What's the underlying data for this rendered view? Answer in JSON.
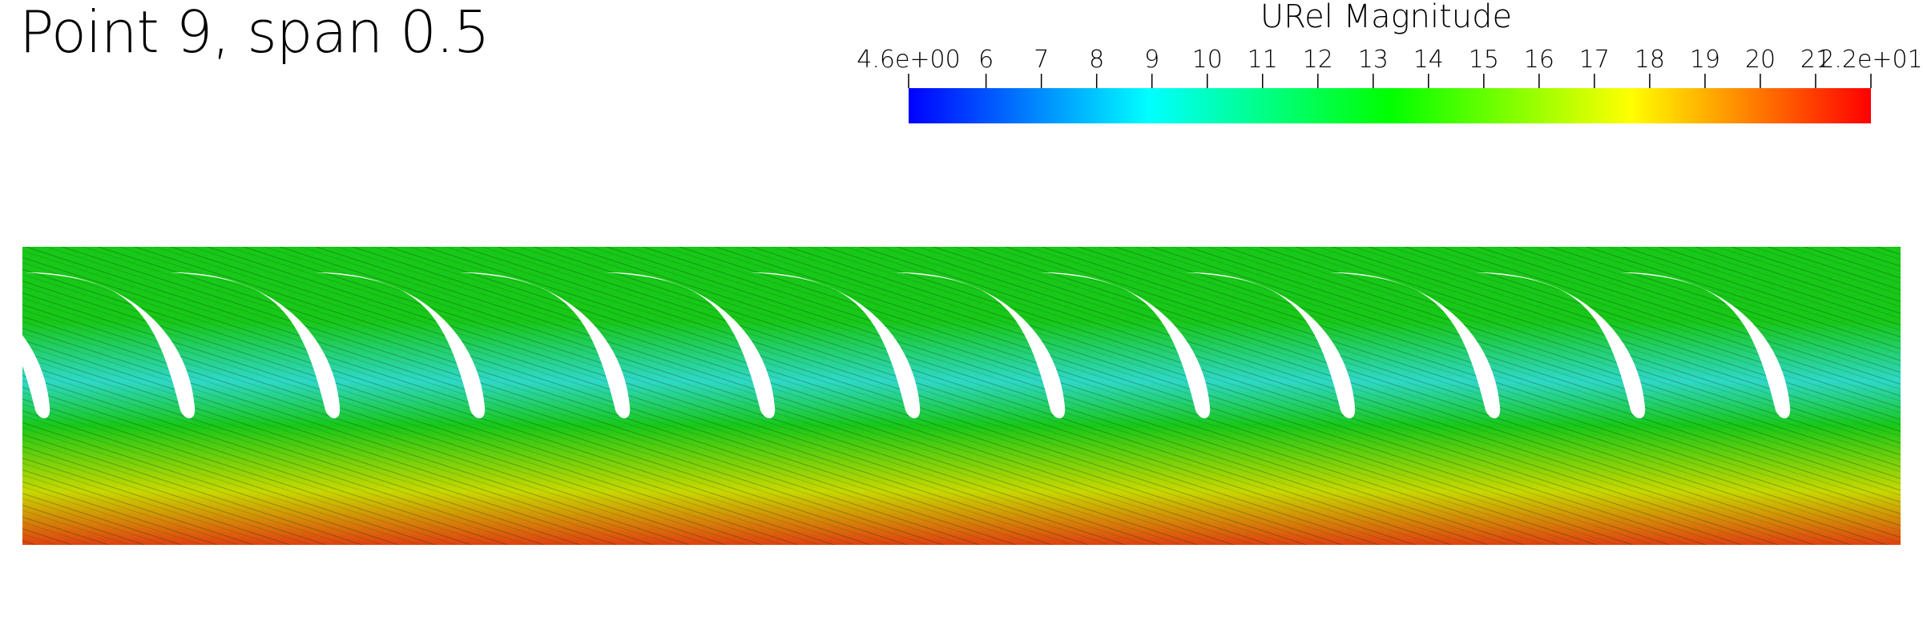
{
  "title": "Point 9, span 0.5",
  "colorbar": {
    "title": "URel Magnitude",
    "tick_labels": [
      "4.6e+00",
      "6",
      "7",
      "8",
      "9",
      "10",
      "11",
      "12",
      "13",
      "14",
      "15",
      "16",
      "17",
      "18",
      "19",
      "20",
      "21",
      "2.2e+01"
    ],
    "tick_values": [
      4.6,
      6,
      7,
      8,
      9,
      10,
      11,
      12,
      13,
      14,
      15,
      16,
      17,
      18,
      19,
      20,
      21,
      22
    ],
    "range": [
      4.6,
      22
    ],
    "colormap": [
      "#0000ff",
      "#00ffff",
      "#00ff00",
      "#ffff00",
      "#ff0000"
    ]
  },
  "field": {
    "blade_count": 13,
    "colors": {
      "low": "#2fd8c8",
      "mid": "#18c818",
      "high": "#c8d800",
      "max": "#e04010",
      "streamline": "#0a3a0a"
    }
  }
}
